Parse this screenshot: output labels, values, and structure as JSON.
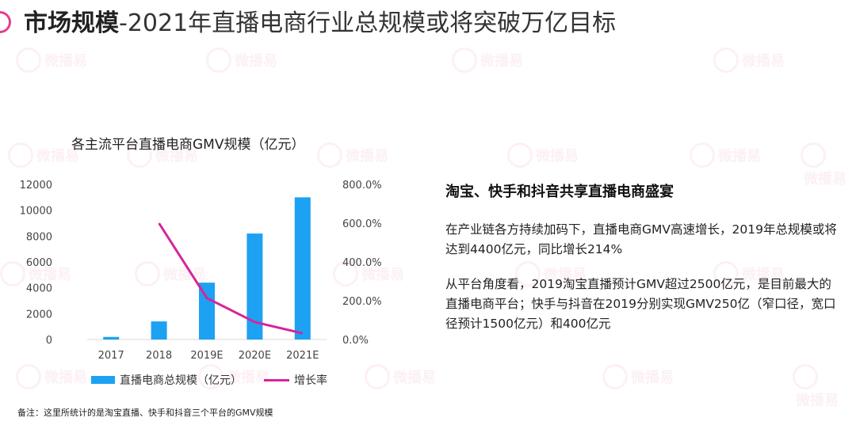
{
  "header": {
    "title_bold": "市场规模",
    "title_rest": "-2021年直播电商行业总规模或将突破万亿目标"
  },
  "watermark": {
    "text": "微播易"
  },
  "colors": {
    "bar": "#1da1f2",
    "line": "#d7249a",
    "accent": "#e43d8c"
  },
  "chart_data": {
    "type": "bar",
    "title": "各主流平台直播电商GMV规模（亿元）",
    "categories": [
      "2017",
      "2018",
      "2019E",
      "2020E",
      "2021E"
    ],
    "series": [
      {
        "name": "直播电商总规模（亿元）",
        "type": "bar",
        "axis": "left",
        "values": [
          200,
          1400,
          4400,
          8200,
          11000
        ]
      },
      {
        "name": "增长率",
        "type": "line",
        "axis": "right",
        "values": [
          null,
          600,
          214,
          90,
          32
        ]
      }
    ],
    "y_left": {
      "min": 0,
      "max": 12000,
      "ticks": [
        "0",
        "2000",
        "4000",
        "6000",
        "8000",
        "10000",
        "12000"
      ]
    },
    "y_right": {
      "min": 0,
      "max": 800,
      "unit": "%",
      "ticks": [
        "0.0%",
        "200.0%",
        "400.0%",
        "600.0%",
        "800.0%"
      ]
    },
    "grid": false,
    "legend_position": "bottom"
  },
  "note": "备注：这里所统计的是淘宝直播、快手和抖音三个平台的GMV规模",
  "panel": {
    "heading": "淘宝、快手和抖音共享直播电商盛宴",
    "para1": "在产业链各方持续加码下，直播电商GMV高速增长，2019年总规模或将达到4400亿元，同比增长214%",
    "para2": "从平台角度看，2019淘宝直播预计GMV超过2500亿元，是目前最大的直播电商平台；快手与抖音在2019分别实现GMV250亿（窄口径，宽口径预计1500亿元）和400亿元"
  }
}
